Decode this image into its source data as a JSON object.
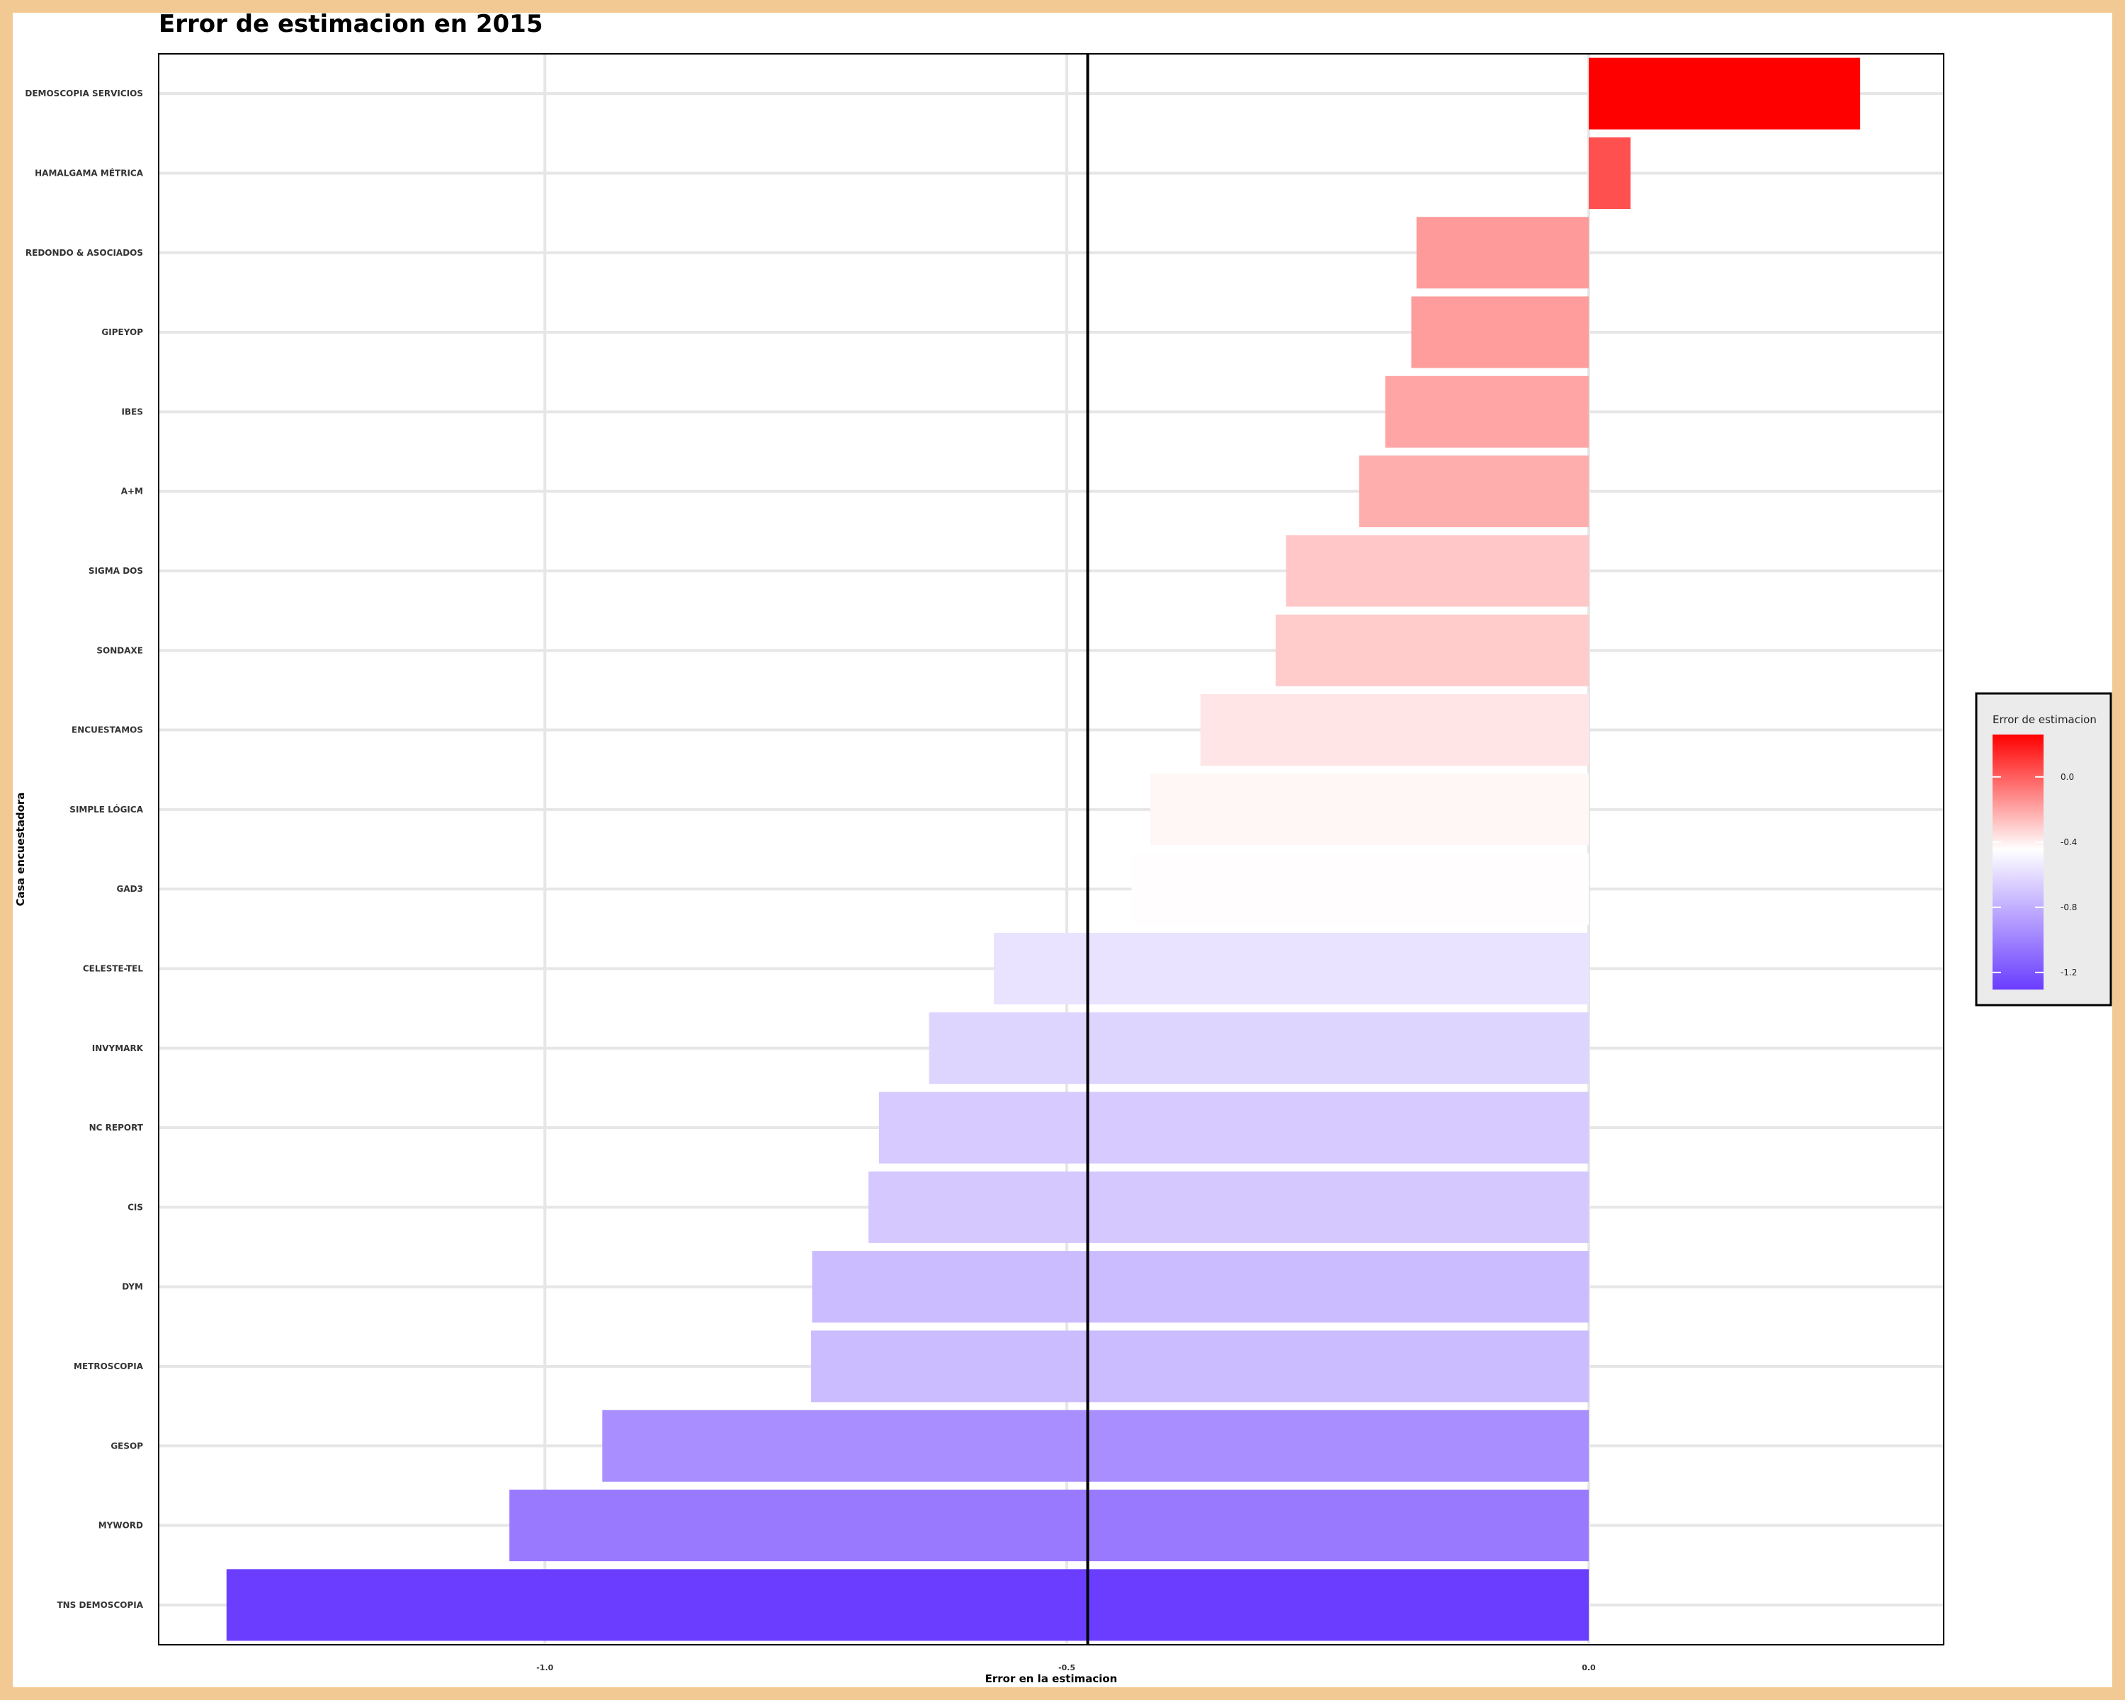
{
  "chart_data": {
    "type": "bar",
    "orientation": "horizontal",
    "title": "Error de estimacion en 2015",
    "xlabel": "Error en la estimacion",
    "ylabel": "Casa encuestadora",
    "xlim": [
      -1.37,
      0.34
    ],
    "xticks": [
      -1.0,
      -0.5,
      0.0
    ],
    "xtick_labels": [
      "-1.0",
      "-0.5",
      "0.0"
    ],
    "reference_line": -0.48,
    "grid": true,
    "categories": [
      "DEMOSCOPIA SERVICIOS",
      "HAMALGAMA MÉTRICA",
      "REDONDO & ASOCIADOS",
      "GIPEYOP",
      "IBES",
      "A+M",
      "SIGMA DOS",
      "SONDAXE",
      "ENCUESTAMOS",
      "SIMPLE LÓGICA",
      "GAD3",
      "CELESTE-TEL",
      "INVYMARK",
      "NC REPORT",
      "CIS",
      "DYM",
      "METROSCOPIA",
      "GESOP",
      "MYWORD",
      "TNS DEMOSCOPIA"
    ],
    "values": [
      0.26,
      0.04,
      -0.165,
      -0.17,
      -0.195,
      -0.22,
      -0.29,
      -0.3,
      -0.372,
      -0.42,
      -0.438,
      -0.57,
      -0.632,
      -0.68,
      -0.69,
      -0.744,
      -0.745,
      -0.945,
      -1.034,
      -1.305
    ],
    "legend": {
      "title": "Error de estimacion",
      "position": "right",
      "range": [
        -1.305,
        0.26
      ],
      "ticks": [
        0.0,
        -0.4,
        -0.8,
        -1.2
      ],
      "tick_labels": [
        "0.0",
        "-0.4",
        "-0.8",
        "-1.2"
      ],
      "colors": {
        "high": "#ff0000",
        "mid": "#ffffff",
        "low": "#6a3dff"
      }
    }
  }
}
